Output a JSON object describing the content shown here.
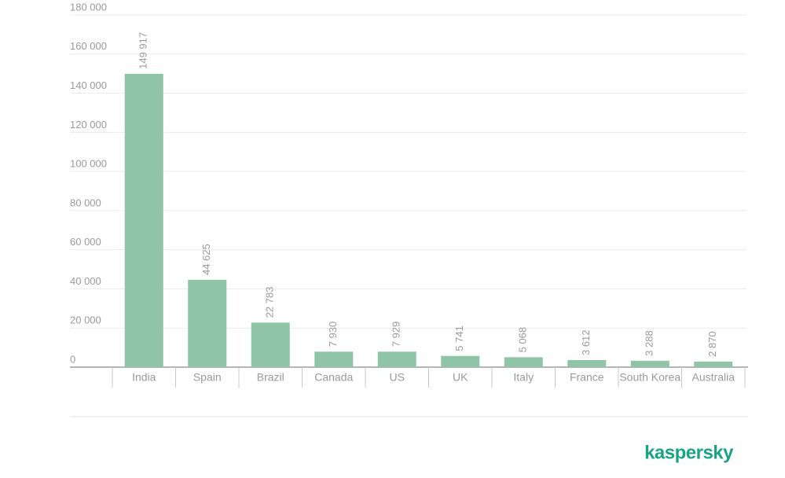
{
  "chart_data": {
    "type": "bar",
    "categories": [
      "India",
      "Spain",
      "Brazil",
      "Canada",
      "US",
      "UK",
      "Italy",
      "France",
      "South Korea",
      "Australia"
    ],
    "values": [
      149917,
      44625,
      22783,
      7930,
      7929,
      5741,
      5068,
      3612,
      3288,
      2870
    ],
    "value_labels": [
      "149 917",
      "44 625",
      "22 783",
      "7 930",
      "7 929",
      "5 741",
      "5 068",
      "3 612",
      "3 288",
      "2 870"
    ],
    "color": "#8fc5a6",
    "ylim": [
      0,
      180000
    ],
    "yticks": [
      0,
      {
        "value": 20000,
        "label": "20 000"
      },
      {
        "value": 40000,
        "label": "40 000"
      },
      {
        "value": 60000,
        "label": "60 000"
      },
      {
        "value": 80000,
        "label": "80 000"
      },
      {
        "value": 100000,
        "label": "100 000"
      },
      {
        "value": 120000,
        "label": "120 000"
      },
      {
        "value": 140000,
        "label": "140 000"
      },
      {
        "value": 160000,
        "label": "160 000"
      },
      {
        "value": 180000,
        "label": "180 000"
      }
    ],
    "grid": true
  },
  "logo": "kaspersky"
}
